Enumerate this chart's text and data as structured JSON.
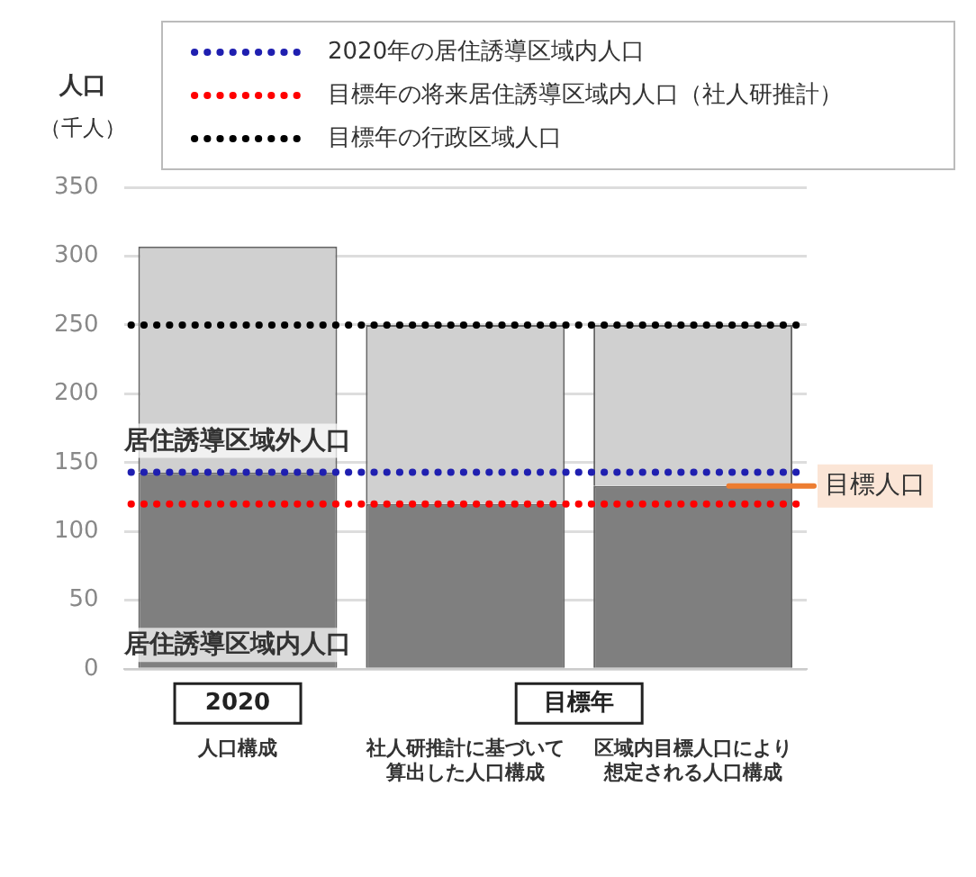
{
  "chart_data": {
    "type": "bar",
    "stacked": true,
    "ylabel": "人口（千人）",
    "categories": [
      "人口構成",
      "社人研推計に基づいて算出した人口構成",
      "区域内目標人口により想定される人口構成"
    ],
    "series": [
      {
        "name": "居住誘導区域内人口",
        "color": "#7f7f7f",
        "values": [
          143,
          120,
          133
        ]
      },
      {
        "name": "居住誘導区域外人口",
        "color": "#d0d0d0",
        "values": [
          164,
          130,
          117
        ]
      }
    ],
    "ylim": [
      0,
      350
    ],
    "yticks": [
      0,
      50,
      100,
      150,
      200,
      250,
      300,
      350
    ],
    "grid": "y",
    "legend": "top",
    "ref_lines": [
      {
        "axis": "y",
        "value": 143,
        "label": "2020年の居住誘導区域内人口",
        "color": "#1f1fb0",
        "line_style": "dotted"
      },
      {
        "axis": "y",
        "value": 120,
        "label": "目標年の将来居住誘導区域内人口（社人研推計）",
        "color": "#ff0000",
        "line_style": "dotted"
      },
      {
        "axis": "y",
        "value": 250,
        "label": "目標年の行政区域人口",
        "color": "#000000",
        "line_style": "dotted"
      },
      {
        "axis": "y",
        "value": 133,
        "label": "目標人口",
        "color": "#ed7d31",
        "line_style": "solid"
      }
    ],
    "annotations": [
      "2020",
      "目標年"
    ]
  }
}
